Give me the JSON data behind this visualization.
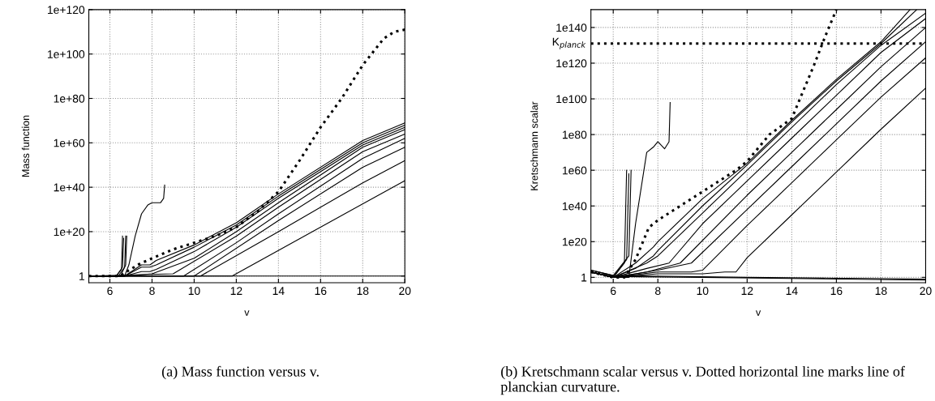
{
  "chart_data": [
    {
      "type": "line",
      "xlabel": "v",
      "ylabel": "Mass function",
      "log": "y",
      "grid": true,
      "xlim": [
        5,
        20
      ],
      "xticks": [
        6,
        8,
        10,
        12,
        14,
        16,
        18,
        20
      ],
      "ylim": [
        0.001,
        1e+120
      ],
      "yticks": [
        1,
        {
          "value": 1e+20,
          "label": "1e+20"
        },
        {
          "value": 1e+40,
          "label": "1e+40"
        },
        {
          "value": 1e+60,
          "label": "1e+60"
        },
        {
          "value": 1e+80,
          "label": "1e+80"
        },
        {
          "value": 1e+100,
          "label": "1e+100"
        },
        {
          "value": 1e+120,
          "label": "1e+120"
        }
      ],
      "annotations": [
        "(a) Mass function versus v."
      ],
      "series": [
        {
          "color": "#000000",
          "x": [
            5,
            20
          ],
          "values": [
            1,
            1
          ]
        },
        {
          "color": "#000000",
          "x": [
            5,
            6.3,
            6.55,
            6.6
          ],
          "values": [
            1,
            1,
            1000.0,
            1e+18
          ]
        },
        {
          "color": "#000000",
          "x": [
            5,
            6.3,
            6.6,
            6.65
          ],
          "values": [
            1,
            1,
            10000.0,
            1e+17
          ]
        },
        {
          "color": "#000000",
          "x": [
            5,
            6.4,
            6.7,
            6.75
          ],
          "values": [
            1,
            1,
            10000.0,
            1e+18
          ]
        },
        {
          "color": "#000000",
          "x": [
            5,
            6.5,
            6.75,
            6.8
          ],
          "values": [
            1,
            1,
            100000.0,
            1e+18
          ]
        },
        {
          "color": "#000000",
          "x": [
            5,
            6.7,
            6.9,
            7.2,
            7.5,
            7.8,
            8.0,
            8.4,
            8.55,
            8.6
          ],
          "values": [
            1,
            1,
            100000.0,
            1e+18,
            1e+28,
            1e+32,
            1e+33,
            1e+33,
            1e+35,
            1e+41
          ]
        },
        {
          "color": "#000000",
          "x": [
            5,
            11.8,
            20
          ],
          "values": [
            1,
            1,
            1e+43
          ]
        },
        {
          "color": "#000000",
          "x": [
            5,
            10.3,
            14,
            18,
            20
          ],
          "values": [
            1,
            1,
            1e+20,
            1e+42,
            1e+52
          ]
        },
        {
          "color": "#000000",
          "x": [
            5,
            10,
            14,
            18,
            20
          ],
          "values": [
            1,
            1,
            1e+25,
            1e+49,
            1e+58
          ]
        },
        {
          "color": "#000000",
          "x": [
            5,
            9.5,
            12,
            14,
            18,
            20
          ],
          "values": [
            1,
            1,
            1000000000000000.0,
            1e+28,
            1e+53,
            1e+62
          ]
        },
        {
          "color": "#000000",
          "x": [
            5,
            9,
            12,
            14,
            18,
            20
          ],
          "values": [
            1,
            10,
            1e+18,
            1e+31,
            1e+56,
            1e+64
          ]
        },
        {
          "color": "#000000",
          "x": [
            5,
            6.8,
            8,
            10,
            12,
            14,
            18,
            20
          ],
          "values": [
            1,
            1,
            10,
            100000000.0,
            1e+20,
            1e+33,
            1e+58,
            1e+66
          ]
        },
        {
          "color": "#000000",
          "x": [
            5,
            6.7,
            7.5,
            7.9,
            8.2,
            10,
            12,
            14,
            18,
            20
          ],
          "values": [
            1,
            1,
            100.0,
            100.0,
            1000.0,
            100000000000.0,
            1e+22,
            1e+35,
            1e+59,
            1e+67
          ]
        },
        {
          "color": "#000000",
          "x": [
            5,
            6.7,
            7.5,
            7.9,
            8.2,
            10,
            12,
            14,
            18,
            20
          ],
          "values": [
            1,
            1,
            10000.0,
            10000.0,
            100000.0,
            10000000000000.0,
            1e+23,
            1e+36,
            1e+60,
            1e+68
          ]
        },
        {
          "color": "#000000",
          "x": [
            5,
            6.7,
            7.5,
            7.9,
            8.2,
            10,
            12,
            14,
            18,
            20
          ],
          "values": [
            1,
            1,
            100000.0,
            100000.0,
            10000000.0,
            100000000000000.0,
            1e+24,
            1e+37,
            1e+61,
            1e+69
          ]
        },
        {
          "color": "#000000",
          "line_style": "dotted",
          "x": [
            5,
            6.5,
            6.8,
            7.5,
            7.8,
            8,
            9,
            10,
            11,
            12,
            13,
            14,
            15,
            16,
            17,
            18,
            19,
            19.5,
            20
          ],
          "values": [
            1,
            1,
            100.0,
            1000000.0,
            10000000.0,
            100000000.0,
            1000000000000.0,
            1000000000000000.0,
            1e+18,
            1e+22,
            1e+29,
            1e+38,
            1e+52,
            1e+67,
            1e+80,
            1e+95,
            1e+107,
            1e+110,
            1e+111
          ]
        }
      ]
    },
    {
      "type": "line",
      "xlabel": "v",
      "ylabel": "Kretschmann scalar",
      "log": "y",
      "grid": true,
      "xlim": [
        5,
        20
      ],
      "xticks": [
        6,
        8,
        10,
        12,
        14,
        16,
        18,
        20
      ],
      "ylim": [
        0.001,
        1e+150
      ],
      "yticks": [
        1,
        {
          "value": 1e+20,
          "label": "1e20"
        },
        {
          "value": 1e+40,
          "label": "1e40"
        },
        {
          "value": 1e+60,
          "label": "1e60"
        },
        {
          "value": 1e+80,
          "label": "1e80"
        },
        {
          "value": 1e+100,
          "label": "1e100"
        },
        {
          "value": 1e+120,
          "label": "1e120"
        },
        {
          "value": 1e+140,
          "label": "1e140"
        }
      ],
      "ref_lines": [
        {
          "axis": "y",
          "value": 1e+131,
          "label": "K$_{planck}$",
          "color": "#000000",
          "line_style": "dotted"
        }
      ],
      "annotations": [
        "(b) Kretschmann scalar versus v. Dotted horizontal line marks line of planckian curvature."
      ],
      "series": [
        {
          "color": "#000000",
          "x": [
            5,
            6,
            10,
            20
          ],
          "values": [
            1000.0,
            3,
            1,
            0.03
          ]
        },
        {
          "color": "#000000",
          "x": [
            5,
            6,
            12,
            20
          ],
          "values": [
            10000.0,
            10,
            1,
            0.1
          ]
        },
        {
          "color": "#000000",
          "x": [
            5,
            6,
            6.5,
            6.6
          ],
          "values": [
            1000.0,
            1,
            100000000.0,
            1e+60
          ]
        },
        {
          "color": "#000000",
          "x": [
            5,
            6,
            6.6,
            6.7
          ],
          "values": [
            1000.0,
            1,
            10000000000.0,
            1e+58
          ]
        },
        {
          "color": "#000000",
          "x": [
            5,
            6,
            6.7,
            6.8
          ],
          "values": [
            10000.0,
            10,
            1000000000000.0,
            1e+60
          ]
        },
        {
          "color": "#000000",
          "x": [
            5,
            6,
            6.7,
            7.0,
            7.5,
            7.8,
            8.0,
            8.3,
            8.5,
            8.55
          ],
          "values": [
            1000.0,
            1,
            1,
            1e+30,
            1e+70,
            1e+73,
            1e+76,
            1e+72,
            1e+76,
            1e+98
          ]
        },
        {
          "color": "#000000",
          "x": [
            5,
            6,
            8,
            10,
            11,
            11.5,
            12,
            14,
            16,
            18,
            20
          ],
          "values": [
            1000.0,
            1,
            100.0,
            100.0,
            1000.0,
            1000.0,
            100000000000.0,
            1e+35,
            1e+59,
            1e+83,
            1e+106
          ]
        },
        {
          "color": "#000000",
          "x": [
            5,
            6,
            8,
            9.5,
            10,
            12,
            14,
            16,
            18,
            20
          ],
          "values": [
            1000.0,
            1,
            1000.0,
            1000.0,
            10000.0,
            1e+29,
            1e+53,
            1e+77,
            1e+101,
            1e+123
          ]
        },
        {
          "color": "#000000",
          "x": [
            5,
            6,
            8,
            9.5,
            12,
            14,
            16,
            18,
            20
          ],
          "values": [
            1000.0,
            1,
            10000.0,
            100000000.0,
            1e+38,
            1e+62,
            1e+86,
            1e+110,
            1e+132
          ]
        },
        {
          "color": "#000000",
          "x": [
            5,
            6,
            7.5,
            9,
            12,
            14,
            16,
            18,
            20
          ],
          "values": [
            1000.0,
            1,
            1000.0,
            100000000.0,
            1e+46,
            1e+70,
            1e+94,
            1e+118,
            1e+140
          ]
        },
        {
          "color": "#000000",
          "x": [
            5,
            6,
            7.5,
            8.5,
            10,
            12,
            14,
            16,
            18,
            20
          ],
          "values": [
            1000.0,
            1,
            100000.0,
            100000000.0,
            1e+30,
            1e+54,
            1e+78,
            1e+102,
            1e+126,
            1e+145
          ]
        },
        {
          "color": "#000000",
          "x": [
            5,
            6,
            7.5,
            8,
            10,
            12,
            14,
            16,
            18,
            20
          ],
          "values": [
            1000.0,
            1,
            100000000.0,
            1000000000000.0,
            1e+36,
            1e+60,
            1e+84,
            1e+108,
            1e+130,
            1e+148
          ]
        },
        {
          "color": "#000000",
          "x": [
            5,
            6,
            7,
            7.8,
            8,
            10,
            12,
            14,
            16,
            18,
            19.6
          ],
          "values": [
            1000.0,
            1,
            100000.0,
            1000000000000.0,
            1000000000000000.0,
            1e+40,
            1e+63,
            1e+87,
            1e+110,
            1e+131,
            1e+150
          ]
        },
        {
          "color": "#000000",
          "x": [
            5,
            6,
            7,
            7.8,
            8,
            10,
            12,
            14,
            16,
            18,
            19.3
          ],
          "values": [
            1000.0,
            1,
            100000000.0,
            1e+17,
            1e+20,
            1e+44,
            1e+64,
            1e+88,
            1e+111,
            1e+132,
            1e+150
          ]
        },
        {
          "color": "#000000",
          "line_style": "dotted",
          "x": [
            5,
            6,
            6.5,
            7,
            7.6,
            8,
            10,
            11.5,
            12,
            13,
            14,
            15,
            15.5,
            16
          ],
          "values": [
            1000.0,
            1,
            1,
            10000000000.0,
            1e+28,
            1e+32,
            1e+48,
            1e+60,
            1e+65,
            1e+80,
            1e+89,
            1e+119,
            1e+135,
            1e+150
          ]
        }
      ]
    }
  ]
}
